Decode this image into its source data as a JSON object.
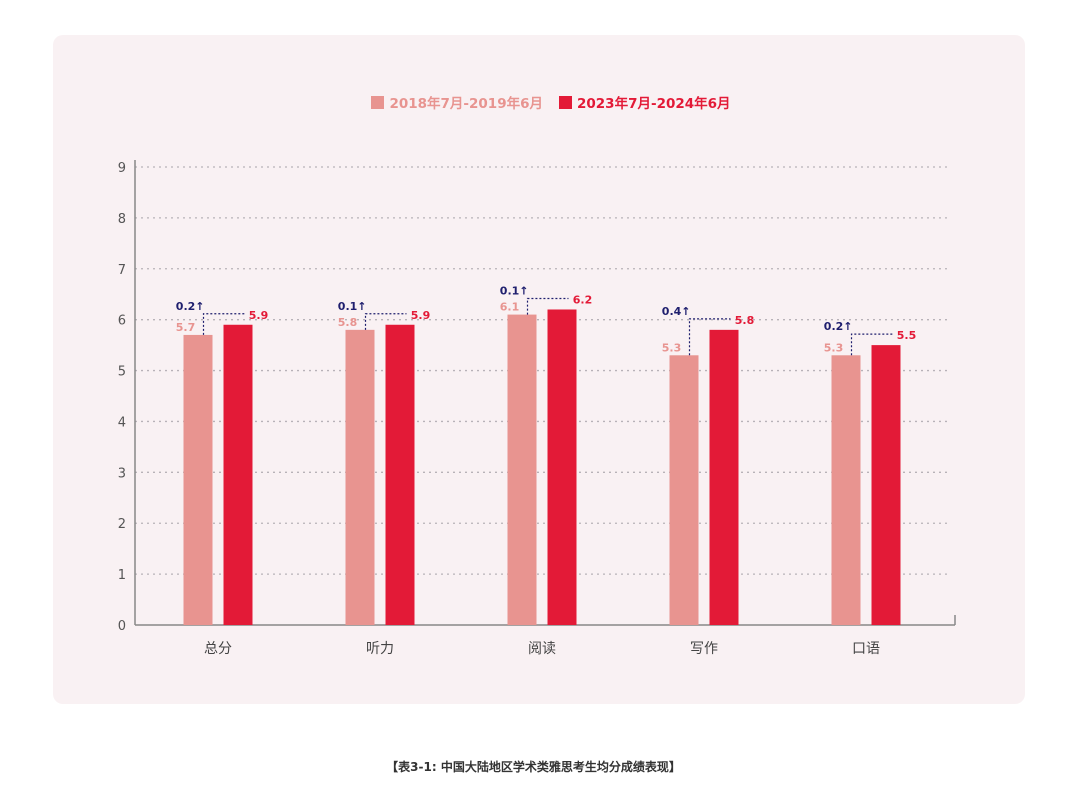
{
  "chart_data": {
    "type": "bar",
    "categories": [
      "总分",
      "听力",
      "阅读",
      "写作",
      "口语"
    ],
    "series": [
      {
        "name": "2018年7月-2019年6月",
        "color": "#e89490",
        "values": [
          5.7,
          5.8,
          6.1,
          5.3,
          5.3
        ],
        "labels": [
          "5.7",
          "5.8",
          "6.1",
          "5.3",
          "5.3"
        ]
      },
      {
        "name": "2023年7月-2024年6月",
        "color": "#e31a37",
        "values": [
          5.9,
          5.9,
          6.2,
          5.8,
          5.5
        ],
        "labels": [
          "5.9",
          "5.9",
          "6.2",
          "5.8",
          "5.5"
        ]
      }
    ],
    "deltas": [
      "0.2↑",
      "0.1↑",
      "0.1↑",
      "0.4↑",
      "0.2↑"
    ],
    "delta_color": "#1f1f6e",
    "y_ticks": [
      "0",
      "1",
      "2",
      "3",
      "4",
      "5",
      "6",
      "7",
      "8",
      "9"
    ],
    "ylim": [
      0,
      9
    ],
    "grid": true,
    "legend_position": "top-center",
    "title": "",
    "xlabel": "",
    "ylabel": ""
  },
  "caption": "【表3-1: 中国大陆地区学术类雅思考生均分成绩表现】"
}
